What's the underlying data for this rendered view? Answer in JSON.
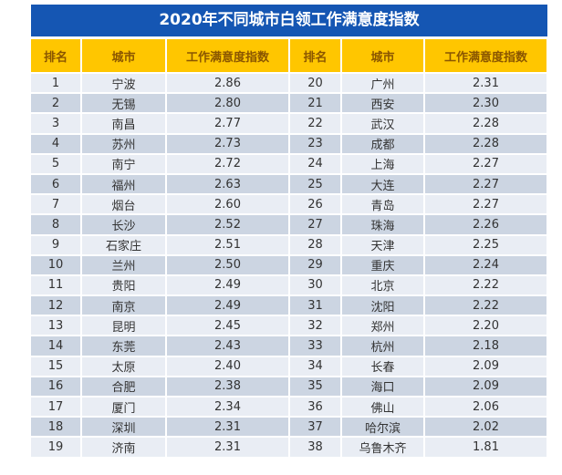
{
  "title": "2020年不同城市白领工作满意度指数",
  "headers": [
    "排名",
    "城市",
    "工作满意度指数",
    "排名",
    "城市",
    "工作满意度指数"
  ],
  "colors": {
    "title_bg": "#1556b3",
    "header_bg": "#ffc600",
    "row_light": "#e9edf4",
    "row_dark": "#ccd5e2"
  },
  "rows": [
    [
      "1",
      "宁波",
      "2.86",
      "20",
      "广州",
      "2.31"
    ],
    [
      "2",
      "无锡",
      "2.80",
      "21",
      "西安",
      "2.30"
    ],
    [
      "3",
      "南昌",
      "2.77",
      "22",
      "武汉",
      "2.28"
    ],
    [
      "4",
      "苏州",
      "2.73",
      "23",
      "成都",
      "2.28"
    ],
    [
      "5",
      "南宁",
      "2.72",
      "24",
      "上海",
      "2.27"
    ],
    [
      "6",
      "福州",
      "2.63",
      "25",
      "大连",
      "2.27"
    ],
    [
      "7",
      "烟台",
      "2.60",
      "26",
      "青岛",
      "2.27"
    ],
    [
      "8",
      "长沙",
      "2.52",
      "27",
      "珠海",
      "2.26"
    ],
    [
      "9",
      "石家庄",
      "2.51",
      "28",
      "天津",
      "2.25"
    ],
    [
      "10",
      "兰州",
      "2.50",
      "29",
      "重庆",
      "2.24"
    ],
    [
      "11",
      "贵阳",
      "2.49",
      "30",
      "北京",
      "2.22"
    ],
    [
      "12",
      "南京",
      "2.49",
      "31",
      "沈阳",
      "2.22"
    ],
    [
      "13",
      "昆明",
      "2.45",
      "32",
      "郑州",
      "2.20"
    ],
    [
      "14",
      "东莞",
      "2.43",
      "33",
      "杭州",
      "2.18"
    ],
    [
      "15",
      "太原",
      "2.40",
      "34",
      "长春",
      "2.09"
    ],
    [
      "16",
      "合肥",
      "2.38",
      "35",
      "海口",
      "2.09"
    ],
    [
      "17",
      "厦门",
      "2.34",
      "36",
      "佛山",
      "2.06"
    ],
    [
      "18",
      "深圳",
      "2.31",
      "37",
      "哈尔滨",
      "2.02"
    ],
    [
      "19",
      "济南",
      "2.31",
      "38",
      "乌鲁木齐",
      "1.81"
    ]
  ]
}
